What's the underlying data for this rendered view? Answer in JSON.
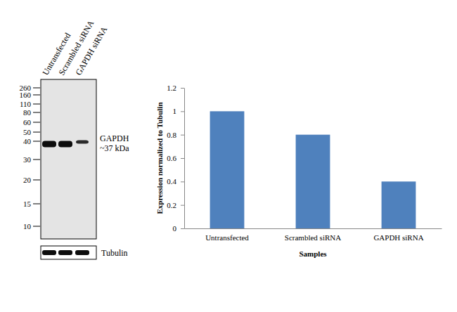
{
  "blot": {
    "lanes": [
      "Untransfected",
      "Scrambled siRNA",
      "GAPDH siRNA"
    ],
    "markers": [
      260,
      160,
      110,
      80,
      60,
      50,
      40,
      30,
      20,
      15,
      10
    ],
    "band_label": "GAPDH",
    "band_size": "~37 kDa",
    "loading_control": "Tubulin"
  },
  "chart_data": {
    "type": "bar",
    "categories": [
      "Untransfected",
      "Scrambled siRNA",
      "GAPDH siRNA"
    ],
    "values": [
      1,
      0.8,
      0.4
    ],
    "color": "#4f81bd",
    "x_label": "Samples",
    "y_label": "Expression normalized to Tubulin",
    "ylim": [
      0,
      1.2
    ],
    "yticks": [
      0,
      0.2,
      0.4,
      0.6,
      0.8,
      1,
      1.2
    ],
    "grid": false
  }
}
